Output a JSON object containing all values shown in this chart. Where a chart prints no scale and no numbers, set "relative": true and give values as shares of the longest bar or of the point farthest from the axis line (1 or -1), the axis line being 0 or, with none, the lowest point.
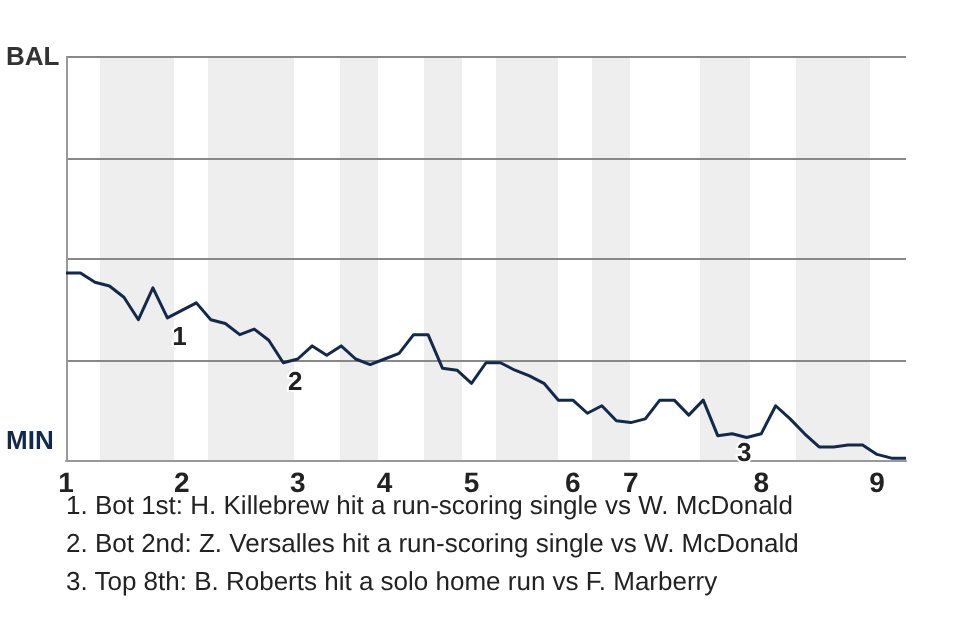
{
  "chart_data": {
    "type": "line",
    "categories": [
      "1",
      null,
      null,
      null,
      null,
      null,
      null,
      null,
      "2",
      null,
      null,
      null,
      null,
      null,
      null,
      null,
      "3",
      null,
      null,
      null,
      null,
      null,
      "4",
      null,
      null,
      null,
      null,
      null,
      "5",
      null,
      null,
      null,
      null,
      null,
      null,
      "6",
      null,
      null,
      null,
      "7",
      null,
      null,
      null,
      null,
      null,
      null,
      null,
      null,
      "8",
      null,
      null,
      null,
      null,
      null,
      null,
      null,
      "9",
      null,
      null
    ],
    "series": [
      {
        "color": "#13294b",
        "values": [
          1,
          1,
          0.95,
          0.93,
          0.87,
          0.75,
          0.92,
          0.76,
          0.8,
          0.84,
          0.75,
          0.73,
          0.67,
          0.7,
          0.64,
          0.52,
          0.54,
          0.61,
          0.56,
          0.61,
          0.54,
          0.51,
          0.54,
          0.57,
          0.67,
          0.67,
          0.49,
          0.48,
          0.41,
          0.52,
          0.52,
          0.48,
          0.45,
          0.41,
          0.32,
          0.32,
          0.25,
          0.29,
          0.21,
          0.2,
          0.22,
          0.32,
          0.32,
          0.24,
          0.32,
          0.13,
          0.14,
          0.12,
          0.14,
          0.29,
          0.22,
          0.14,
          0.07,
          0.07,
          0.08,
          0.08,
          0.03,
          0.01,
          0.01
        ]
      }
    ],
    "relative": true,
    "annotations": [
      "BAL",
      "MIN",
      {
        "text": "1",
        "y": 0.76
      },
      {
        "text": "2",
        "y": 0.52
      },
      {
        "text": "3",
        "y": 0.14
      },
      "1. Bot 1st: H. Killebrew hit a run-scoring single vs W. McDonald",
      "2. Bot 2nd: Z. Versalles hit a run-scoring single vs W. McDonald",
      "3. Top 8th: B. Roberts hit a solo home run vs F. Marberry"
    ],
    "marker": "none"
  }
}
